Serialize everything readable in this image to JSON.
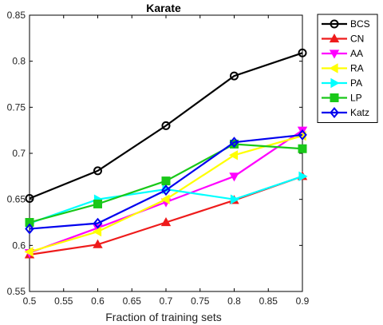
{
  "chart_data": {
    "type": "line",
    "title": "Karate",
    "xlabel": "Fraction of training sets",
    "ylabel": "",
    "x": [
      0.5,
      0.6,
      0.7,
      0.8,
      0.9
    ],
    "xlim": [
      0.5,
      0.9
    ],
    "ylim": [
      0.55,
      0.85
    ],
    "x_ticks": [
      "0.5",
      "0.55",
      "0.6",
      "0.65",
      "0.7",
      "0.75",
      "0.8",
      "0.85",
      "0.9"
    ],
    "y_ticks": [
      "0.55",
      "0.6",
      "0.65",
      "0.7",
      "0.75",
      "0.8",
      "0.85"
    ],
    "grid": false,
    "legend_position": "top-right",
    "series": [
      {
        "name": "BCS",
        "color": "#000000",
        "marker": "circle",
        "values": [
          0.651,
          0.681,
          0.73,
          0.784,
          0.809
        ]
      },
      {
        "name": "CN",
        "color": "#ee1b1b",
        "marker": "triangle-up",
        "values": [
          0.59,
          0.601,
          0.625,
          0.649,
          0.675
        ]
      },
      {
        "name": "AA",
        "color": "#ff00ff",
        "marker": "triangle-down",
        "values": [
          0.592,
          0.619,
          0.647,
          0.675,
          0.725
        ]
      },
      {
        "name": "RA",
        "color": "#ffff00",
        "marker": "triangle-left",
        "values": [
          0.593,
          0.615,
          0.65,
          0.698,
          0.719
        ]
      },
      {
        "name": "PA",
        "color": "#00ffff",
        "marker": "triangle-right",
        "values": [
          0.624,
          0.65,
          0.661,
          0.65,
          0.675
        ]
      },
      {
        "name": "LP",
        "color": "#19c819",
        "marker": "square",
        "values": [
          0.625,
          0.645,
          0.67,
          0.71,
          0.705
        ]
      },
      {
        "name": "Katz",
        "color": "#0000ee",
        "marker": "diamond",
        "values": [
          0.618,
          0.624,
          0.66,
          0.712,
          0.72
        ]
      }
    ]
  }
}
